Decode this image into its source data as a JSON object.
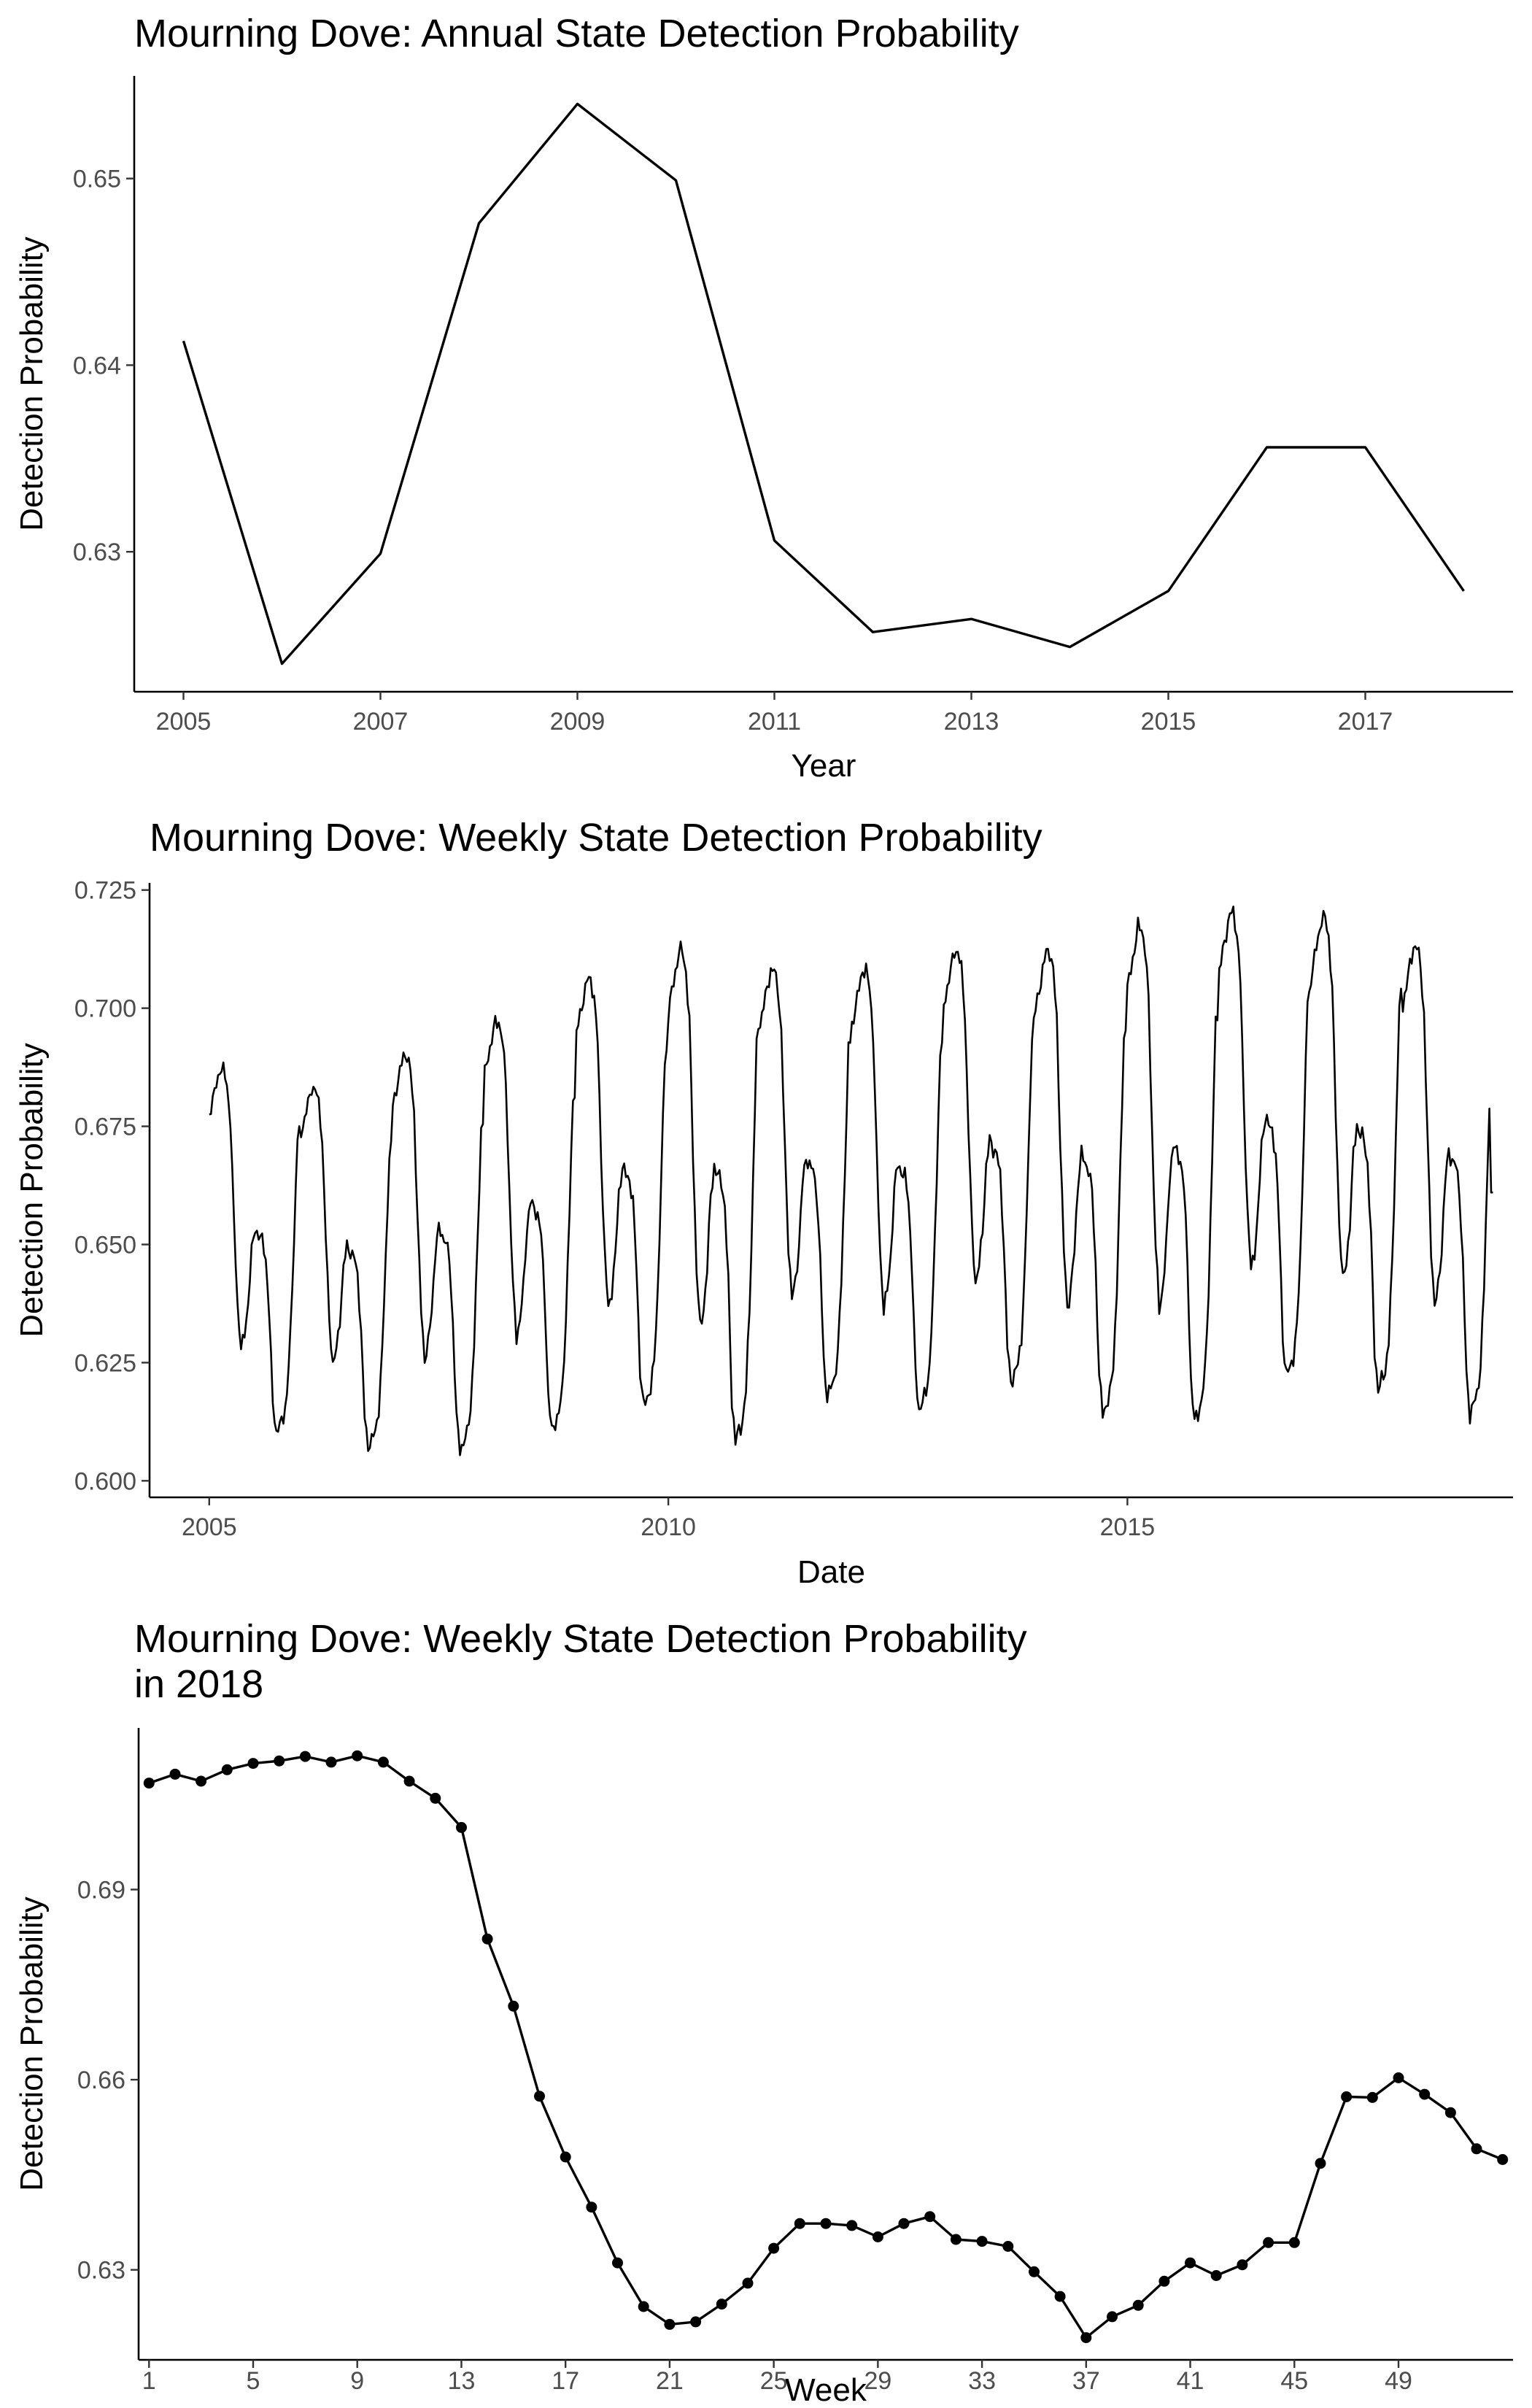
{
  "chart_data": [
    {
      "type": "line",
      "title": "Mourning Dove: Annual State Detection Probability",
      "xlabel": "Year",
      "ylabel": "Detection Probability",
      "xlim": [
        2004.5,
        2018.5
      ],
      "ylim": [
        0.6225,
        0.6555
      ],
      "x_ticks": [
        2005,
        2007,
        2009,
        2011,
        2013,
        2015,
        2017
      ],
      "y_ticks": [
        0.63,
        0.64,
        0.65
      ],
      "x_tick_labels": [
        "2005",
        "2007",
        "2009",
        "2011",
        "2013",
        "2015",
        "2017"
      ],
      "y_tick_labels": [
        "0.63",
        "0.64",
        "0.65"
      ],
      "x": [
        2005,
        2006,
        2007,
        2008,
        2009,
        2010,
        2011,
        2012,
        2013,
        2014,
        2015,
        2016,
        2017,
        2018
      ],
      "y": [
        0.6413,
        0.624,
        0.6299,
        0.6476,
        0.654,
        0.6499,
        0.6306,
        0.6257,
        0.6264,
        0.6249,
        0.6279,
        0.6356,
        0.6356,
        0.6279
      ],
      "grid": false,
      "legend": "none"
    },
    {
      "type": "line",
      "title": "Mourning Dove: Weekly State Detection Probability",
      "xlabel": "Date",
      "ylabel": "Detection Probability",
      "xlim": [
        2004.35,
        2019.2
      ],
      "ylim": [
        0.5965,
        0.7265
      ],
      "x_ticks": [
        2005,
        2010,
        2015
      ],
      "y_ticks": [
        0.6,
        0.625,
        0.65,
        0.675,
        0.7,
        0.725
      ],
      "x_tick_labels": [
        "2005",
        "2010",
        "2015"
      ],
      "y_tick_labels": [
        "0.600",
        "0.625",
        "0.650",
        "0.675",
        "0.700",
        "0.725"
      ],
      "seasonal_profile": {
        "weeks": [
          1,
          3,
          5,
          7,
          9,
          11,
          13,
          15,
          17,
          19,
          21,
          23,
          25,
          27,
          29,
          31,
          33,
          35,
          37,
          39,
          41,
          43,
          45,
          47,
          49,
          51,
          53
        ],
        "shape": [
          0.88,
          0.92,
          0.96,
          1.0,
          1.0,
          0.96,
          0.86,
          0.6,
          0.38,
          0.26,
          0.3,
          0.38,
          0.52,
          0.58,
          0.56,
          0.55,
          0.5,
          0.35,
          0.12,
          0.04,
          0.06,
          0.08,
          0.14,
          0.3,
          0.55,
          0.82,
          0.86
        ]
      },
      "years": [
        2005,
        2006,
        2007,
        2008,
        2009,
        2010,
        2011,
        2012,
        2013,
        2014,
        2015,
        2016,
        2017,
        2018
      ],
      "yearly_max": [
        0.687,
        0.683,
        0.69,
        0.697,
        0.706,
        0.712,
        0.708,
        0.708,
        0.712,
        0.712,
        0.717,
        0.72,
        0.719,
        0.713
      ],
      "yearly_min": [
        0.607,
        0.604,
        0.603,
        0.607,
        0.612,
        0.604,
        0.614,
        0.611,
        0.617,
        0.61,
        0.608,
        0.618,
        0.615,
        0.61
      ],
      "yearly_midseason": [
        0.662,
        0.646,
        0.649,
        0.663,
        0.666,
        0.66,
        0.642,
        0.638,
        0.638,
        0.636,
        0.645,
        0.646,
        0.645,
        0.638
      ],
      "end_value": 0.661,
      "grid": false,
      "legend": "none"
    },
    {
      "type": "line",
      "title": "Mourning Dove: Weekly State Detection Probability\nin 2018",
      "title_lines": [
        "Mourning Dove: Weekly State Detection Probability",
        "in 2018"
      ],
      "xlabel": "Week",
      "ylabel": "Detection Probability",
      "xlim": [
        0.6,
        53.4
      ],
      "ylim": [
        0.6158,
        0.7155
      ],
      "x_ticks": [
        1,
        5,
        9,
        13,
        17,
        21,
        25,
        29,
        33,
        37,
        41,
        45,
        49
      ],
      "y_ticks": [
        0.63,
        0.66,
        0.69
      ],
      "x_tick_labels": [
        "1",
        "5",
        "9",
        "13",
        "17",
        "21",
        "25",
        "29",
        "33",
        "37",
        "41",
        "45",
        "49"
      ],
      "y_tick_labels": [
        "0.63",
        "0.66",
        "0.69"
      ],
      "x": [
        1,
        2,
        3,
        4,
        5,
        6,
        7,
        8,
        9,
        10,
        11,
        12,
        13,
        14,
        15,
        16,
        17,
        18,
        19,
        20,
        21,
        22,
        23,
        24,
        25,
        26,
        27,
        28,
        29,
        30,
        31,
        32,
        33,
        34,
        35,
        36,
        37,
        38,
        39,
        40,
        41,
        42,
        43,
        44,
        45,
        46,
        47,
        48,
        49,
        50,
        51,
        52,
        53
      ],
      "y": [
        0.7068,
        0.7082,
        0.7071,
        0.7089,
        0.7099,
        0.7103,
        0.711,
        0.7101,
        0.7111,
        0.7101,
        0.7071,
        0.7044,
        0.6998,
        0.6822,
        0.6716,
        0.6574,
        0.6478,
        0.6399,
        0.6311,
        0.6242,
        0.6214,
        0.6218,
        0.6246,
        0.6279,
        0.6334,
        0.6373,
        0.6373,
        0.637,
        0.6352,
        0.6373,
        0.6384,
        0.6348,
        0.6345,
        0.6337,
        0.6297,
        0.6258,
        0.6193,
        0.6226,
        0.6244,
        0.6282,
        0.6311,
        0.6291,
        0.6308,
        0.6343,
        0.6343,
        0.6468,
        0.6573,
        0.6572,
        0.6603,
        0.6577,
        0.6548,
        0.6491,
        0.6474
      ],
      "markers": true,
      "grid": false,
      "legend": "none"
    }
  ]
}
